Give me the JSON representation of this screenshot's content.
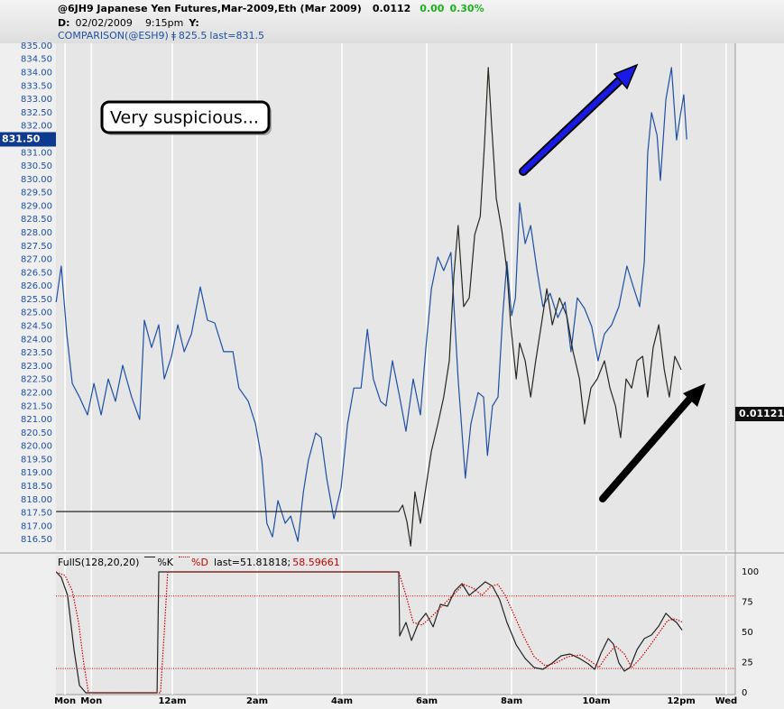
{
  "chart_data": [
    {
      "type": "line",
      "header": {
        "title": "@6JH9 Japanese Yen Futures,Mar-2009,Eth (Mar 2009)",
        "last": "0.0112",
        "change": "0.00",
        "change_pct": "0.30%",
        "d_label": "D:",
        "date": "02/02/2009",
        "time": "9:15pm",
        "y_label": "Y:",
        "marker": "ǂ",
        "comparison_value": "825.5",
        "comparison_last": "last=831.5"
      },
      "annotation": "Very suspicious...",
      "xlim": [
        -2.745,
        13.275
      ],
      "ylim": [
        816.1,
        835.1
      ],
      "grid": "x",
      "yticks": [
        {
          "value": 816.5,
          "label": "816.50"
        },
        {
          "value": 817,
          "label": "817.00"
        },
        {
          "value": 817.5,
          "label": "817.50"
        },
        {
          "value": 818,
          "label": "818.00"
        },
        {
          "value": 818.5,
          "label": "818.50"
        },
        {
          "value": 819,
          "label": "819.00"
        },
        {
          "value": 819.5,
          "label": "819.50"
        },
        {
          "value": 820,
          "label": "820.00"
        },
        {
          "value": 820.5,
          "label": "820.50"
        },
        {
          "value": 821,
          "label": "821.00"
        },
        {
          "value": 821.5,
          "label": "821.50"
        },
        {
          "value": 822,
          "label": "822.00"
        },
        {
          "value": 822.5,
          "label": "822.50"
        },
        {
          "value": 823,
          "label": "823.00"
        },
        {
          "value": 823.5,
          "label": "823.50"
        },
        {
          "value": 824,
          "label": "824.00"
        },
        {
          "value": 824.5,
          "label": "824.50"
        },
        {
          "value": 825,
          "label": "825.00"
        },
        {
          "value": 825.5,
          "label": "825.50"
        },
        {
          "value": 826,
          "label": "826.00"
        },
        {
          "value": 826.5,
          "label": "826.50"
        },
        {
          "value": 827,
          "label": "827.00"
        },
        {
          "value": 827.5,
          "label": "827.50"
        },
        {
          "value": 828,
          "label": "828.00"
        },
        {
          "value": 828.5,
          "label": "828.50"
        },
        {
          "value": 829,
          "label": "829.00"
        },
        {
          "value": 829.5,
          "label": "829.50"
        },
        {
          "value": 830,
          "label": "830.00"
        },
        {
          "value": 830.5,
          "label": "830.50"
        },
        {
          "value": 831,
          "label": "831.00"
        },
        {
          "value": 832,
          "label": "832.00"
        },
        {
          "value": 832.5,
          "label": "832.50"
        },
        {
          "value": 833,
          "label": "833.00"
        },
        {
          "value": 833.5,
          "label": "833.50"
        },
        {
          "value": 834,
          "label": "834.00"
        },
        {
          "value": 834.5,
          "label": "834.50"
        },
        {
          "value": 835,
          "label": "835.00"
        }
      ],
      "series": [
        {
          "name": "COMPARISON(@ESH9)",
          "color": "#1d4fa3",
          "x": [
            -2.74,
            -2.62,
            -2.49,
            -2.36,
            -2.19,
            -2.0,
            -1.85,
            -1.68,
            -1.51,
            -1.34,
            -1.17,
            -0.96,
            -0.77,
            -0.66,
            -0.49,
            -0.32,
            -0.19,
            -0.02,
            0.13,
            0.28,
            0.45,
            0.66,
            0.83,
            1.0,
            1.21,
            1.43,
            1.57,
            1.79,
            1.96,
            2.11,
            2.23,
            2.36,
            2.49,
            2.66,
            2.79,
            2.96,
            3.09,
            3.21,
            3.38,
            3.51,
            3.64,
            3.81,
            3.98,
            4.13,
            4.28,
            4.45,
            4.6,
            4.74,
            4.91,
            5.04,
            5.19,
            5.36,
            5.51,
            5.68,
            5.85,
            5.98,
            6.11,
            6.26,
            6.4,
            6.57,
            6.74,
            6.91,
            7.04,
            7.21,
            7.34,
            7.43,
            7.55,
            7.68,
            7.79,
            7.89,
            8.0,
            8.09,
            8.19,
            8.32,
            8.45,
            8.6,
            8.74,
            8.91,
            9.09,
            9.26,
            9.4,
            9.55,
            9.72,
            9.89,
            10.04,
            10.19,
            10.36,
            10.53,
            10.72,
            10.87,
            11.02,
            11.13,
            11.21,
            11.3,
            11.43,
            11.51,
            11.64,
            11.77,
            11.89,
            11.98,
            12.06,
            12.13
          ],
          "values": [
            825.4,
            826.75,
            824.21,
            822.35,
            821.84,
            821.17,
            822.35,
            821.17,
            822.52,
            821.68,
            823.03,
            821.84,
            821.0,
            824.72,
            823.7,
            824.55,
            822.52,
            823.37,
            824.55,
            823.54,
            824.21,
            825.97,
            824.72,
            824.62,
            823.54,
            823.54,
            822.18,
            821.68,
            820.83,
            819.48,
            817.11,
            816.6,
            817.96,
            817.11,
            817.38,
            816.43,
            818.29,
            819.48,
            820.49,
            820.32,
            818.8,
            817.28,
            818.46,
            820.83,
            822.18,
            822.18,
            824.38,
            822.52,
            821.68,
            821.51,
            823.2,
            821.84,
            820.56,
            822.52,
            821.17,
            823.7,
            825.9,
            827.09,
            826.58,
            827.26,
            822.52,
            818.8,
            820.83,
            822.01,
            821.84,
            819.65,
            821.51,
            821.84,
            824.89,
            826.92,
            824.89,
            825.56,
            829.12,
            827.59,
            828.27,
            826.58,
            825.23,
            825.73,
            824.82,
            825.4,
            823.54,
            825.56,
            825.16,
            824.48,
            823.2,
            824.21,
            824.55,
            825.23,
            826.75,
            825.97,
            825.23,
            826.92,
            830.98,
            832.5,
            831.65,
            829.96,
            833.0,
            834.19,
            831.48,
            832.4,
            833.17,
            831.5
          ],
          "last": {
            "value": 831.5,
            "label": "831.50"
          }
        },
        {
          "color": "#262620",
          "x": [
            -2.74,
            5.34,
            5.43,
            5.53,
            5.62,
            5.72,
            5.85,
            5.98,
            6.11,
            6.26,
            6.4,
            6.53,
            6.64,
            6.74,
            6.87,
            7.0,
            7.13,
            7.26,
            7.36,
            7.45,
            7.53,
            7.64,
            7.77,
            7.89,
            7.98,
            8.11,
            8.19,
            8.32,
            8.45,
            8.57,
            8.7,
            8.83,
            8.96,
            9.13,
            9.3,
            9.45,
            9.6,
            9.72,
            9.87,
            10.02,
            10.19,
            10.32,
            10.45,
            10.57,
            10.7,
            10.83,
            10.96,
            11.09,
            11.21,
            11.34,
            11.47,
            11.6,
            11.72,
            11.85,
            12.0
          ],
          "values": [
            817.55,
            817.55,
            817.79,
            817.18,
            816.26,
            818.29,
            817.11,
            818.46,
            819.82,
            820.83,
            821.84,
            823.2,
            826.41,
            828.27,
            825.23,
            825.56,
            827.93,
            828.61,
            831.31,
            834.19,
            831.99,
            829.28,
            828.1,
            826.58,
            824.55,
            822.52,
            823.87,
            823.2,
            821.84,
            823.2,
            824.55,
            825.9,
            824.55,
            825.56,
            824.89,
            823.54,
            822.52,
            820.83,
            822.18,
            822.52,
            823.2,
            822.18,
            821.51,
            820.32,
            822.52,
            822.18,
            823.2,
            823.37,
            821.84,
            823.7,
            824.55,
            822.86,
            821.84,
            823.37,
            822.86
          ],
          "last": 0.01121
        }
      ]
    },
    {
      "type": "line",
      "study": "FullS(128,20,20)",
      "xlim": [
        -2.745,
        13.275
      ],
      "ylim": [
        -1.5,
        113.4
      ],
      "yticks": [
        0,
        25,
        50,
        75,
        100
      ],
      "levels": [
        80,
        20
      ],
      "level_color": "#cc0000",
      "xticks": [
        {
          "value": -2.53,
          "label": "Mon"
        },
        {
          "value": -1.91,
          "label": "Mon"
        },
        {
          "value": 0,
          "label": "12am"
        },
        {
          "value": 2,
          "label": "2am"
        },
        {
          "value": 4,
          "label": "4am"
        },
        {
          "value": 6,
          "label": "6am"
        },
        {
          "value": 8,
          "label": "8am"
        },
        {
          "value": 10,
          "label": "10am"
        },
        {
          "value": 12,
          "label": "12pm"
        },
        {
          "value": 13.06,
          "label": "Wed"
        }
      ],
      "series": [
        {
          "name": "%K",
          "color": "#222222",
          "last_label": "last=51.81818;",
          "x": [
            -2.74,
            -2.62,
            -2.47,
            -2.32,
            -2.19,
            -2.04,
            -0.36,
            -0.32,
            5.34,
            5.36,
            5.51,
            5.64,
            5.81,
            5.98,
            6.15,
            6.32,
            6.49,
            6.66,
            6.83,
            7.0,
            7.21,
            7.38,
            7.55,
            7.72,
            7.89,
            8.11,
            8.32,
            8.53,
            8.74,
            8.96,
            9.17,
            9.38,
            9.6,
            9.81,
            9.96,
            10.11,
            10.28,
            10.4,
            10.53,
            10.66,
            10.79,
            10.96,
            11.13,
            11.3,
            11.47,
            11.64,
            11.77,
            11.89,
            12.02
          ],
          "values": [
            100,
            95.5,
            80.6,
            35.8,
            6,
            0,
            0,
            100,
            100,
            47,
            58.2,
            43.3,
            58.2,
            65.7,
            54.5,
            73.1,
            71.6,
            84.3,
            90.3,
            80.6,
            86.6,
            91.8,
            88.1,
            76.9,
            58.2,
            39.6,
            28.4,
            20.9,
            19.4,
            24.6,
            30.6,
            32.1,
            28.4,
            23.9,
            19.4,
            32.8,
            44.8,
            40.3,
            24.6,
            17.9,
            20.9,
            35.8,
            44.8,
            47.8,
            55.2,
            65.7,
            61.2,
            58.2,
            51.81818
          ]
        },
        {
          "name": "%D",
          "color": "#cc0000",
          "dashed": true,
          "last_label": "58.59661",
          "x": [
            -2.74,
            -2.53,
            -2.36,
            -2.21,
            -2.09,
            -1.98,
            -0.28,
            -0.19,
            -0.11,
            5.34,
            5.51,
            5.68,
            5.89,
            6.15,
            6.4,
            6.66,
            6.87,
            7.09,
            7.3,
            7.51,
            7.68,
            7.85,
            8.06,
            8.28,
            8.53,
            8.79,
            9.04,
            9.34,
            9.64,
            9.89,
            10.06,
            10.23,
            10.45,
            10.66,
            10.83,
            11.04,
            11.26,
            11.47,
            11.68,
            11.85,
            12.02
          ],
          "values": [
            100,
            97,
            84.3,
            58.2,
            24.6,
            0,
            0,
            50.7,
            100,
            100,
            80.6,
            58.2,
            56,
            64.2,
            73.1,
            82.1,
            89.6,
            86.6,
            80.6,
            88.1,
            89.6,
            80.6,
            64.2,
            47,
            29.9,
            22.4,
            24.6,
            29.9,
            31.3,
            25.4,
            20.9,
            29.9,
            38.8,
            32.1,
            20.9,
            28.4,
            38.8,
            49.3,
            59.7,
            61.2,
            58.59661
          ]
        }
      ]
    }
  ]
}
